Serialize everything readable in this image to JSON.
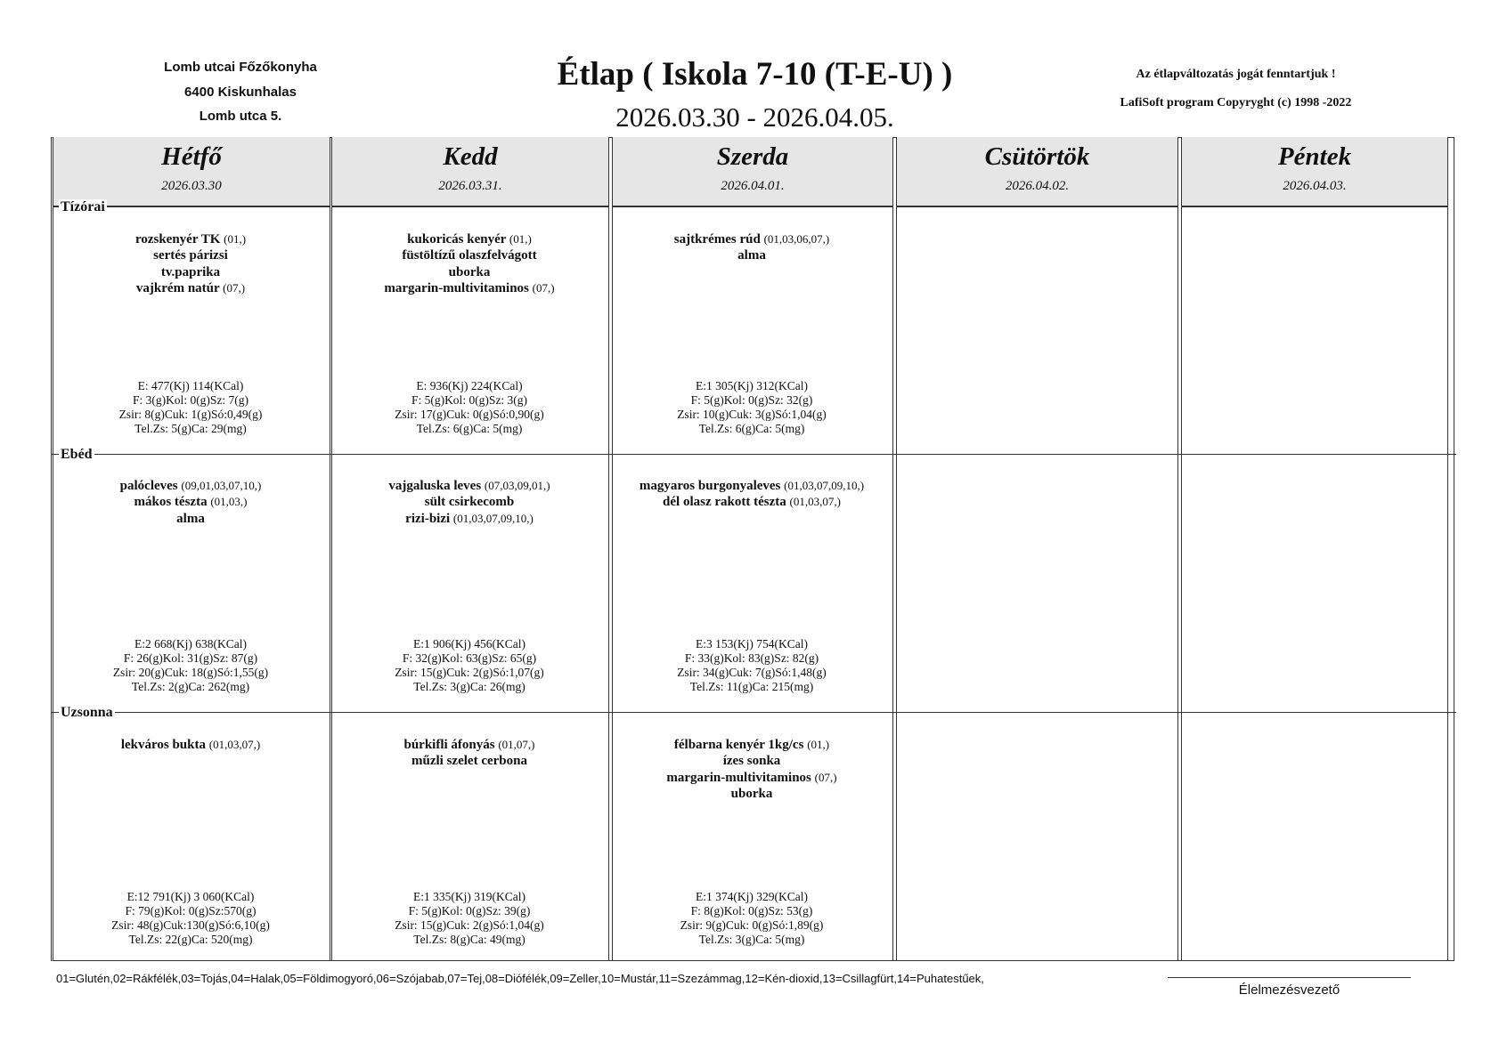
{
  "header": {
    "left": [
      "Lomb utcai Főzőkonyha",
      "6400 Kiskunhalas",
      "Lomb utca 5."
    ],
    "title": "Étlap ( Iskola 7-10 (T-E-U) )",
    "date_range": "2026.03.30 -  2026.04.05.",
    "right": [
      "Az étlapváltozatás jogát fenntartjuk !",
      "LafiSoft program  Copyryght (c) 1998 -2022"
    ]
  },
  "days": [
    {
      "name": "Hétfő",
      "date": "2026.03.30"
    },
    {
      "name": "Kedd",
      "date": "2026.03.31."
    },
    {
      "name": "Szerda",
      "date": "2026.04.01."
    },
    {
      "name": "Csütörtök",
      "date": "2026.04.02."
    },
    {
      "name": "Péntek",
      "date": "2026.04.03."
    }
  ],
  "meals": [
    {
      "label": "Tízórai",
      "cells": [
        {
          "items": [
            {
              "name": "rozskenyér TK",
              "allergens": "(01,)"
            },
            {
              "name": "sertés párizsi",
              "allergens": ""
            },
            {
              "name": "tv.paprika",
              "allergens": ""
            },
            {
              "name": "vajkrém natúr ",
              "allergens": "(07,)"
            }
          ],
          "nutrition": [
            "E: 477(Kj)  114(KCal)",
            "F:  3(g)Kol:  0(g)Sz:  7(g)",
            "Zsir:  8(g)Cuk:  1(g)Só:0,49(g)",
            "Tel.Zs:  5(g)Ca:  29(mg)"
          ]
        },
        {
          "items": [
            {
              "name": "kukoricás kenyér",
              "allergens": "(01,)"
            },
            {
              "name": "füstöltízű olaszfelvágott",
              "allergens": ""
            },
            {
              "name": "uborka",
              "allergens": ""
            },
            {
              "name": "margarin-multivitaminos",
              "allergens": "(07,)"
            }
          ],
          "nutrition": [
            "E: 936(Kj)  224(KCal)",
            "F:  5(g)Kol:  0(g)Sz:  3(g)",
            "Zsir: 17(g)Cuk:  0(g)Só:0,90(g)",
            "Tel.Zs:  6(g)Ca:   5(mg)"
          ]
        },
        {
          "items": [
            {
              "name": "sajtkrémes rúd",
              "allergens": "(01,03,06,07,)"
            },
            {
              "name": "alma",
              "allergens": ""
            }
          ],
          "nutrition": [
            "E:1 305(Kj)  312(KCal)",
            "F:  5(g)Kol:  0(g)Sz: 32(g)",
            "Zsir: 10(g)Cuk:  3(g)Só:1,04(g)",
            "Tel.Zs:  6(g)Ca:   5(mg)"
          ]
        },
        {
          "items": [],
          "nutrition": []
        },
        {
          "items": [],
          "nutrition": []
        }
      ]
    },
    {
      "label": "Ebéd",
      "cells": [
        {
          "items": [
            {
              "name": "palócleves",
              "allergens": "(09,01,03,07,10,)"
            },
            {
              "name": "mákos tészta",
              "allergens": "(01,03,)"
            },
            {
              "name": "alma",
              "allergens": ""
            }
          ],
          "nutrition": [
            "E:2 668(Kj)  638(KCal)",
            "F: 26(g)Kol: 31(g)Sz: 87(g)",
            "Zsir: 20(g)Cuk: 18(g)Só:1,55(g)",
            "Tel.Zs:  2(g)Ca: 262(mg)"
          ]
        },
        {
          "items": [
            {
              "name": "vajgaluska leves",
              "allergens": "(07,03,09,01,)"
            },
            {
              "name": "sült csirkecomb",
              "allergens": ""
            },
            {
              "name": "rizi-bizi",
              "allergens": "(01,03,07,09,10,)"
            }
          ],
          "nutrition": [
            "E:1 906(Kj)  456(KCal)",
            "F: 32(g)Kol: 63(g)Sz: 65(g)",
            "Zsir: 15(g)Cuk:  2(g)Só:1,07(g)",
            "Tel.Zs:  3(g)Ca:  26(mg)"
          ]
        },
        {
          "items": [
            {
              "name": "magyaros burgonyaleves",
              "allergens": "(01,03,07,09,10,)"
            },
            {
              "name": "dél olasz rakott tészta ",
              "allergens": "(01,03,07,)"
            }
          ],
          "nutrition": [
            "E:3 153(Kj)  754(KCal)",
            "F: 33(g)Kol: 83(g)Sz: 82(g)",
            "Zsir: 34(g)Cuk:  7(g)Só:1,48(g)",
            "Tel.Zs: 11(g)Ca: 215(mg)"
          ]
        },
        {
          "items": [],
          "nutrition": []
        },
        {
          "items": [],
          "nutrition": []
        }
      ]
    },
    {
      "label": "Uzsonna",
      "cells": [
        {
          "items": [
            {
              "name": "lekváros bukta ",
              "allergens": "(01,03,07,)"
            }
          ],
          "nutrition": [
            "E:12 791(Kj) 3 060(KCal)",
            "F: 79(g)Kol:  0(g)Sz:570(g)",
            "Zsir: 48(g)Cuk:130(g)Só:6,10(g)",
            "Tel.Zs: 22(g)Ca: 520(mg)"
          ]
        },
        {
          "items": [
            {
              "name": "búrkifli áfonyás",
              "allergens": "(01,07,)"
            },
            {
              "name": "műzli szelet cerbona",
              "allergens": ""
            }
          ],
          "nutrition": [
            "E:1 335(Kj)  319(KCal)",
            "F:  5(g)Kol:  0(g)Sz: 39(g)",
            "Zsir: 15(g)Cuk:  2(g)Só:1,04(g)",
            "Tel.Zs:  8(g)Ca:  49(mg)"
          ]
        },
        {
          "items": [
            {
              "name": "félbarna kenyér 1kg/cs",
              "allergens": "(01,)"
            },
            {
              "name": "ízes sonka",
              "allergens": ""
            },
            {
              "name": "margarin-multivitaminos",
              "allergens": "(07,)"
            },
            {
              "name": "uborka",
              "allergens": ""
            }
          ],
          "nutrition": [
            "E:1 374(Kj)  329(KCal)",
            "F:  8(g)Kol:  0(g)Sz: 53(g)",
            "Zsir:  9(g)Cuk:  0(g)Só:1,89(g)",
            "Tel.Zs:  3(g)Ca:   5(mg)"
          ]
        },
        {
          "items": [],
          "nutrition": []
        },
        {
          "items": [],
          "nutrition": []
        }
      ]
    }
  ],
  "footer": {
    "allergen_legend": "01=Glutén,02=Rákfélék,03=Tojás,04=Halak,05=Földimogyoró,06=Szójabab,07=Tej,08=Diófélék,09=Zeller,10=Mustár,11=Szezámmag,12=Kén-dioxid,13=Csillagfürt,14=Puhatestűek,",
    "signature_label": "Élelmezésvezető"
  }
}
